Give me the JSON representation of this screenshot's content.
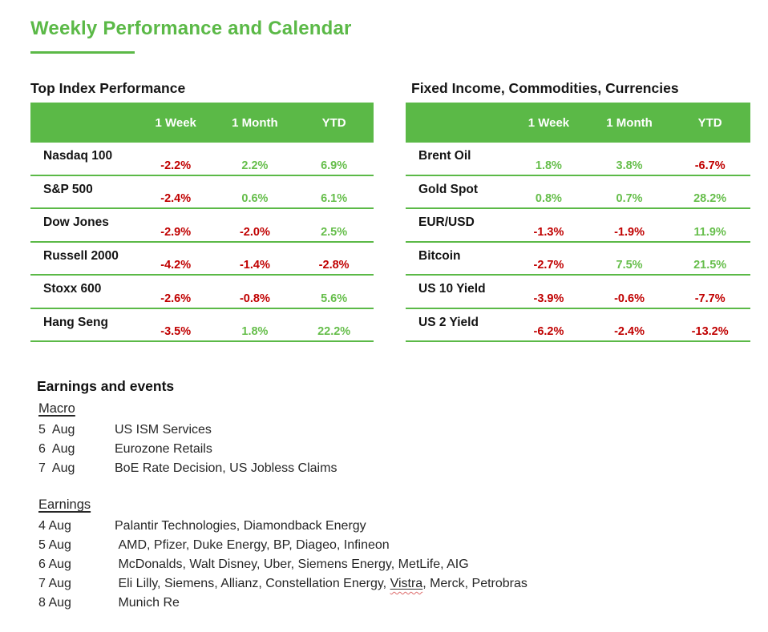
{
  "page": {
    "title": "Weekly Performance and Calendar"
  },
  "colors": {
    "green": "#5BB947",
    "green_text": "#66BE4B",
    "red_text": "#C00000"
  },
  "index_table": {
    "title": "Top Index Performance",
    "columns": [
      "1 Week",
      "1 Month",
      "YTD"
    ],
    "rows": [
      {
        "label": "Nasdaq 100",
        "week": "-2.2%",
        "month": "2.2%",
        "ytd": "6.9%"
      },
      {
        "label": "S&P 500",
        "week": "-2.4%",
        "month": "0.6%",
        "ytd": "6.1%"
      },
      {
        "label": "Dow Jones",
        "week": "-2.9%",
        "month": "-2.0%",
        "ytd": "2.5%"
      },
      {
        "label": "Russell 2000",
        "week": "-4.2%",
        "month": "-1.4%",
        "ytd": "-2.8%"
      },
      {
        "label": "Stoxx 600",
        "week": "-2.6%",
        "month": "-0.8%",
        "ytd": "5.6%"
      },
      {
        "label": "Hang Seng",
        "week": "-3.5%",
        "month": "1.8%",
        "ytd": "22.2%"
      }
    ]
  },
  "ficc_table": {
    "title": "Fixed Income, Commodities, Currencies",
    "columns": [
      "1 Week",
      "1 Month",
      "YTD"
    ],
    "rows": [
      {
        "label": "Brent Oil",
        "week": "1.8%",
        "month": "3.8%",
        "ytd": "-6.7%"
      },
      {
        "label": "Gold Spot",
        "week": "0.8%",
        "month": "0.7%",
        "ytd": "28.2%"
      },
      {
        "label": "EUR/USD",
        "week": "-1.3%",
        "month": "-1.9%",
        "ytd": "11.9%"
      },
      {
        "label": "Bitcoin",
        "week": "-2.7%",
        "month": "7.5%",
        "ytd": "21.5%"
      },
      {
        "label": "US 10 Yield",
        "week": "-3.9%",
        "month": "-0.6%",
        "ytd": "-7.7%"
      },
      {
        "label": "US 2 Yield",
        "week": "-6.2%",
        "month": "-2.4%",
        "ytd": "-13.2%"
      }
    ]
  },
  "calendar": {
    "title": "Earnings and events",
    "macro": {
      "heading": "Macro",
      "events": [
        {
          "date": "5  Aug",
          "text": "US ISM Services"
        },
        {
          "date": "6  Aug",
          "text": "Eurozone Retails"
        },
        {
          "date": "7  Aug",
          "text": "BoE Rate Decision, US Jobless Claims"
        }
      ]
    },
    "earnings": {
      "heading": "Earnings",
      "events": [
        {
          "date": "4 Aug",
          "prefix": "Palantir Technologies, Diamondback Energy",
          "highlight": "",
          "suffix": ""
        },
        {
          "date": "5 Aug",
          "prefix": " AMD, Pfizer, Duke Energy, BP, Diageo, Infineon",
          "highlight": "",
          "suffix": ""
        },
        {
          "date": "6 Aug",
          "prefix": " McDonalds, Walt Disney, Uber, Siemens Energy, MetLife, AIG",
          "highlight": "",
          "suffix": ""
        },
        {
          "date": "7 Aug",
          "prefix": " Eli Lilly, Siemens, Allianz, Constellation Energy, ",
          "highlight": "Vistra",
          "suffix": ", Merck, Petrobras"
        },
        {
          "date": "8 Aug",
          "prefix": " Munich Re",
          "highlight": "",
          "suffix": ""
        }
      ]
    }
  }
}
